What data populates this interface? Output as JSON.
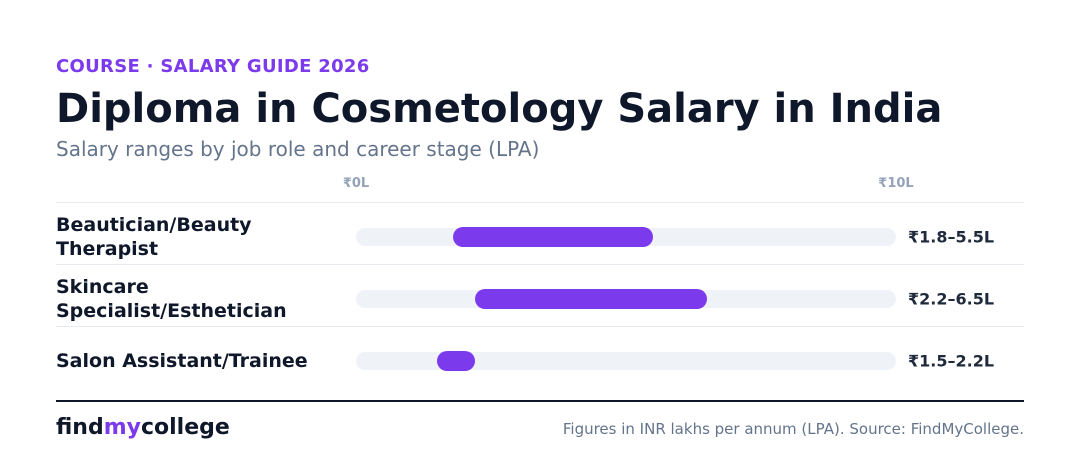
{
  "eyebrow": "COURSE · SALARY GUIDE 2026",
  "chart_data": {
    "type": "range-bar",
    "title": "Diploma in Cosmetology Salary in India",
    "subtitle": "Salary ranges by job role and career stage (LPA)",
    "categories": [
      "Beautician/Beauty Therapist",
      "Skincare Specialist/Esthetician",
      "Salon Assistant/Trainee"
    ],
    "low": [
      1.8,
      2.2,
      1.5
    ],
    "high": [
      5.5,
      6.5,
      2.2
    ],
    "value_labels": [
      "₹1.8–5.5L",
      "₹2.2–6.5L",
      "₹1.5–2.2L"
    ],
    "color": "#7c3aed",
    "xlim": [
      0,
      10
    ],
    "xticks": [
      {
        "value": 0,
        "label": "₹0L"
      },
      {
        "value": 10,
        "label": "₹10L"
      }
    ]
  },
  "footer": {
    "brand": [
      "find",
      "my",
      "college"
    ],
    "note": "Figures in INR lakhs per annum (LPA). Source: FindMyCollege."
  }
}
